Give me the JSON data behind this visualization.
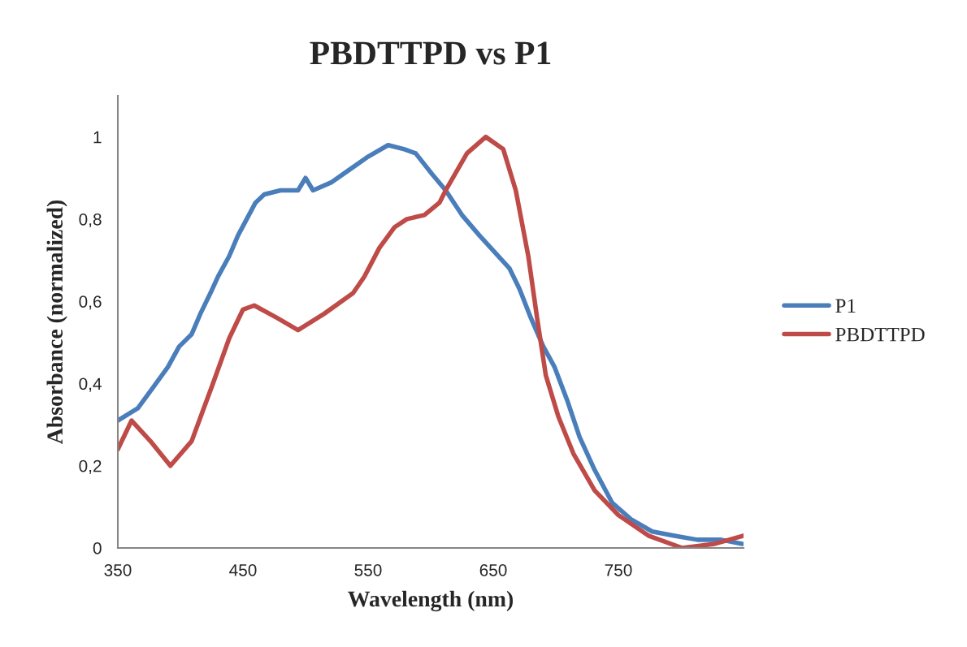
{
  "chart_data": {
    "type": "line",
    "title": "PBDTTPD vs P1",
    "xlabel": "Wavelength (nm)",
    "ylabel": "Absorbance (normalized)",
    "xlim": [
      350,
      850
    ],
    "xticks": [
      350,
      450,
      550,
      650,
      750
    ],
    "ylim": [
      0,
      1.1
    ],
    "yticks": [
      0,
      {
        "value": 0.2,
        "label": "0,2"
      },
      {
        "value": 0.4,
        "label": "0,4"
      },
      {
        "value": 0.6,
        "label": "0,6"
      },
      {
        "value": 0.8,
        "label": "0,8"
      },
      1
    ],
    "grid": false,
    "legend": "right",
    "marker": "none",
    "line_style": "solid",
    "series": [
      {
        "name": "P1",
        "color": "#4a7ebb",
        "x": [
          350,
          366,
          378,
          390,
          399,
          409,
          416,
          424,
          430,
          439,
          446,
          453,
          460,
          467,
          480,
          494,
          500,
          506,
          521,
          535,
          549,
          566,
          579,
          588,
          601,
          612,
          625,
          639,
          651,
          663,
          671,
          680,
          690,
          699,
          709,
          719,
          731,
          745,
          760,
          777,
          794,
          813,
          832,
          849
        ],
        "values": [
          0.31,
          0.34,
          0.39,
          0.44,
          0.49,
          0.52,
          0.57,
          0.62,
          0.66,
          0.71,
          0.76,
          0.8,
          0.84,
          0.86,
          0.87,
          0.87,
          0.9,
          0.87,
          0.89,
          0.92,
          0.95,
          0.98,
          0.97,
          0.96,
          0.91,
          0.87,
          0.81,
          0.76,
          0.72,
          0.68,
          0.63,
          0.56,
          0.49,
          0.44,
          0.36,
          0.27,
          0.19,
          0.11,
          0.07,
          0.04,
          0.03,
          0.02,
          0.02,
          0.01
        ]
      },
      {
        "name": "PBDTTPD",
        "color": "#be4b48",
        "x": [
          350,
          361,
          376,
          392,
          409,
          426,
          439,
          450,
          459,
          477,
          494,
          515,
          538,
          547,
          559,
          571,
          581,
          595,
          607,
          612,
          629,
          644,
          658,
          668,
          678,
          685,
          692,
          702,
          714,
          731,
          750,
          774,
          801,
          827,
          850
        ],
        "values": [
          0.24,
          0.31,
          0.26,
          0.2,
          0.26,
          0.4,
          0.51,
          0.58,
          0.59,
          0.56,
          0.53,
          0.57,
          0.62,
          0.66,
          0.73,
          0.78,
          0.8,
          0.81,
          0.84,
          0.87,
          0.96,
          1.0,
          0.97,
          0.87,
          0.71,
          0.56,
          0.42,
          0.32,
          0.23,
          0.14,
          0.08,
          0.03,
          0.0,
          0.01,
          0.03
        ]
      }
    ]
  }
}
